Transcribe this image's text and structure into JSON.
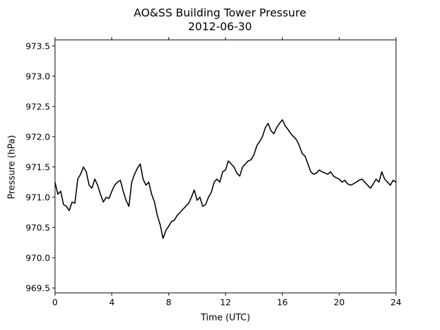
{
  "chart_data": {
    "type": "line",
    "title": "AO&SS Building Tower Pressure",
    "subtitle": "2012-06-30",
    "xlabel": "Time (UTC)",
    "ylabel": "Pressure (hPa)",
    "xlim": [
      0,
      24
    ],
    "ylim": [
      969.42,
      973.6
    ],
    "xticks": [
      0,
      4,
      8,
      12,
      16,
      20,
      24
    ],
    "xtick_labels": [
      "0",
      "4",
      "8",
      "12",
      "16",
      "20",
      "24"
    ],
    "yticks": [
      969.5,
      970.0,
      970.5,
      971.0,
      971.5,
      972.0,
      972.5,
      973.0,
      973.5
    ],
    "ytick_labels": [
      "969.5",
      "970.0",
      "970.5",
      "971.0",
      "971.5",
      "972.0",
      "972.5",
      "973.0",
      "973.5"
    ],
    "grid": false,
    "line_color": "#000000",
    "series": [
      {
        "x": [
          0,
          0.2,
          0.4,
          0.6,
          0.8,
          1.0,
          1.2,
          1.4,
          1.6,
          1.8,
          2.0,
          2.2,
          2.4,
          2.6,
          2.8,
          3.0,
          3.2,
          3.4,
          3.6,
          3.8,
          4.0,
          4.2,
          4.4,
          4.6,
          4.8,
          5.0,
          5.2,
          5.4,
          5.6,
          5.8,
          6.0,
          6.2,
          6.4,
          6.6,
          6.8,
          7.0,
          7.2,
          7.4,
          7.6,
          7.8,
          8.0,
          8.2,
          8.4,
          8.6,
          8.8,
          9.0,
          9.2,
          9.4,
          9.6,
          9.8,
          10.0,
          10.2,
          10.4,
          10.6,
          10.8,
          11.0,
          11.2,
          11.4,
          11.6,
          11.8,
          12.0,
          12.2,
          12.4,
          12.6,
          12.8,
          13.0,
          13.2,
          13.4,
          13.6,
          13.8,
          14.0,
          14.2,
          14.4,
          14.6,
          14.8,
          15.0,
          15.2,
          15.4,
          15.6,
          15.8,
          16.0,
          16.2,
          16.4,
          16.6,
          16.8,
          17.0,
          17.2,
          17.4,
          17.6,
          17.8,
          18.0,
          18.2,
          18.4,
          18.6,
          18.8,
          19.0,
          19.2,
          19.4,
          19.6,
          19.8,
          20.0,
          20.2,
          20.4,
          20.6,
          20.8,
          21.0,
          21.2,
          21.4,
          21.6,
          21.8,
          22.0,
          22.2,
          22.4,
          22.6,
          22.8,
          23.0,
          23.2,
          23.4,
          23.6,
          23.8,
          24.0
        ],
        "y": [
          971.25,
          971.05,
          971.1,
          970.88,
          970.85,
          970.78,
          970.92,
          970.9,
          971.3,
          971.38,
          971.5,
          971.42,
          971.2,
          971.15,
          971.3,
          971.2,
          971.05,
          970.92,
          971.0,
          970.98,
          971.1,
          971.2,
          971.25,
          971.28,
          971.1,
          970.95,
          970.85,
          971.25,
          971.38,
          971.48,
          971.55,
          971.3,
          971.2,
          971.25,
          971.05,
          970.92,
          970.7,
          970.55,
          970.32,
          970.45,
          970.52,
          970.6,
          970.62,
          970.7,
          970.75,
          970.8,
          970.85,
          970.9,
          971.0,
          971.12,
          970.95,
          971.0,
          970.85,
          970.88,
          971.0,
          971.08,
          971.25,
          971.3,
          971.25,
          971.42,
          971.45,
          971.6,
          971.55,
          971.5,
          971.4,
          971.35,
          971.5,
          971.55,
          971.6,
          971.62,
          971.7,
          971.85,
          971.92,
          972.0,
          972.15,
          972.22,
          972.1,
          972.05,
          972.15,
          972.22,
          972.28,
          972.18,
          972.12,
          972.05,
          972.0,
          971.95,
          971.85,
          971.72,
          971.68,
          971.55,
          971.42,
          971.38,
          971.4,
          971.45,
          971.42,
          971.4,
          971.38,
          971.42,
          971.35,
          971.32,
          971.3,
          971.25,
          971.28,
          971.22,
          971.2,
          971.22,
          971.25,
          971.28,
          971.3,
          971.25,
          971.2,
          971.15,
          971.22,
          971.3,
          971.25,
          971.42,
          971.3,
          971.25,
          971.2,
          971.28,
          971.25
        ]
      }
    ]
  }
}
